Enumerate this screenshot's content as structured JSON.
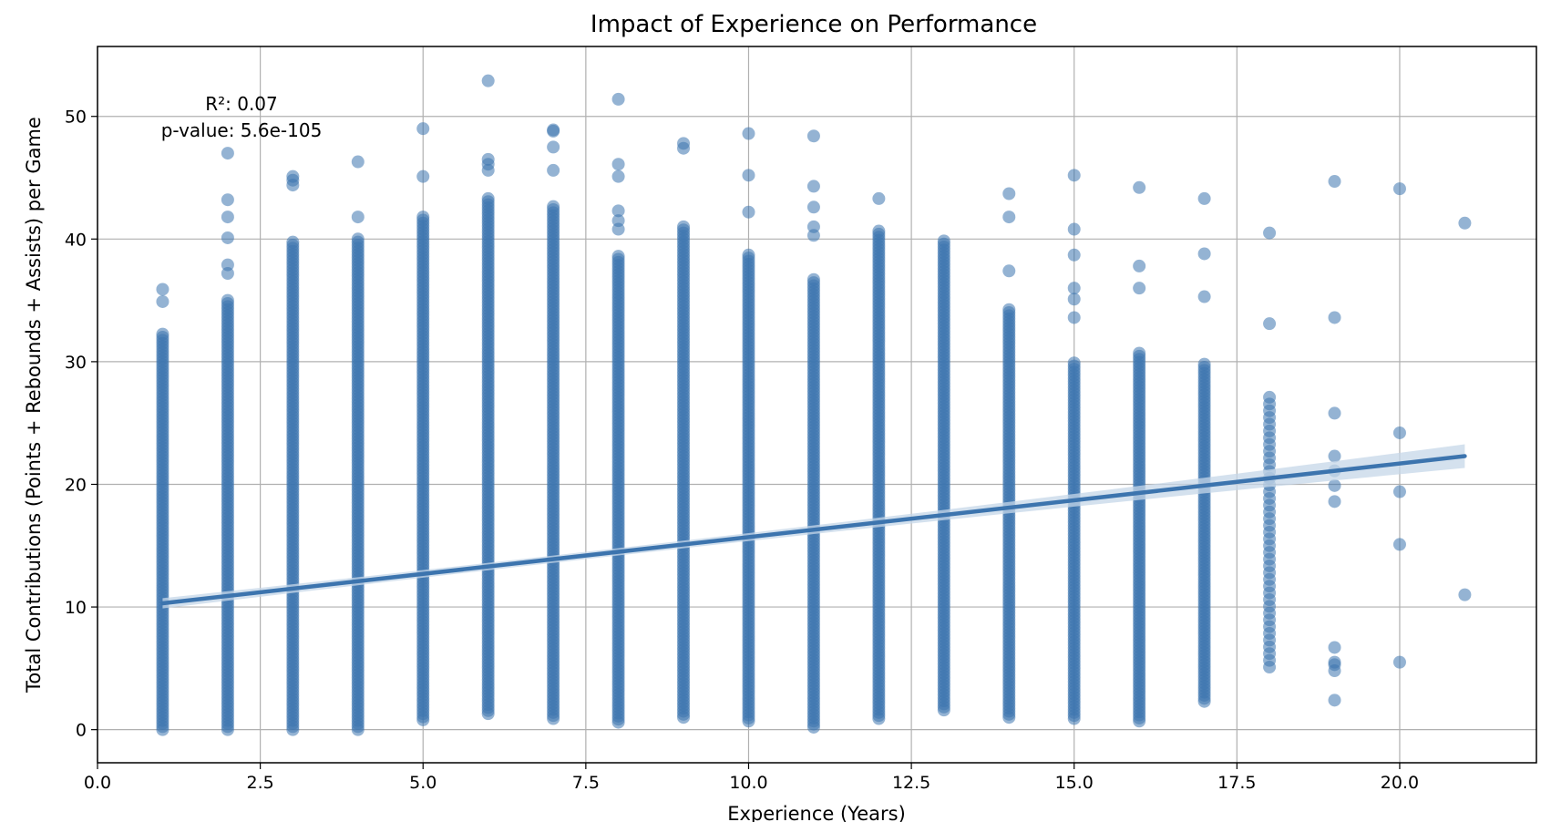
{
  "chart_data": {
    "type": "scatter",
    "title": "Impact of Experience on Performance",
    "xlabel": "Experience (Years)",
    "ylabel": "Total Contributions (Points + Rebounds + Assists) per Game",
    "xlim": [
      0,
      22.1
    ],
    "ylim": [
      -2.7,
      55.7
    ],
    "xticks": [
      0.0,
      2.5,
      5.0,
      7.5,
      10.0,
      12.5,
      15.0,
      17.5,
      20.0
    ],
    "xtick_labels": [
      "0.0",
      "2.5",
      "5.0",
      "7.5",
      "10.0",
      "12.5",
      "15.0",
      "17.5",
      "20.0"
    ],
    "yticks": [
      0,
      10,
      20,
      30,
      40,
      50
    ],
    "ytick_labels": [
      "0",
      "10",
      "20",
      "30",
      "40",
      "50"
    ],
    "grid": true,
    "colors": {
      "points": "#3c74ae",
      "line": "#3c74ae",
      "band": "#c6d7e8"
    },
    "annotations": [
      {
        "text": "R²: 0.07"
      },
      {
        "text": "p-value: 5.6e-105"
      }
    ],
    "regression": {
      "x": [
        1,
        21
      ],
      "y": [
        10.3,
        22.3
      ]
    },
    "columns": [
      {
        "x": 1,
        "min": 0,
        "max": 32.3,
        "outliers": [
          34.9,
          35.9
        ]
      },
      {
        "x": 2,
        "min": 0,
        "max": 35.0,
        "outliers": [
          37.2,
          37.9,
          40.1,
          41.8,
          43.2,
          47.0
        ]
      },
      {
        "x": 3,
        "min": 0,
        "max": 39.9,
        "outliers": [
          44.4,
          44.8,
          45.1
        ]
      },
      {
        "x": 4,
        "min": 0,
        "max": 40.2,
        "outliers": [
          41.8,
          46.3
        ]
      },
      {
        "x": 5,
        "min": 0.8,
        "max": 42.0,
        "outliers": [
          45.1,
          49.0
        ]
      },
      {
        "x": 6,
        "min": 1.3,
        "max": 43.5,
        "outliers": [
          45.6,
          46.1,
          46.5,
          52.9
        ]
      },
      {
        "x": 7,
        "min": 0.9,
        "max": 42.7,
        "outliers": [
          45.6,
          47.5,
          48.8,
          48.9
        ]
      },
      {
        "x": 8,
        "min": 0.6,
        "max": 38.6,
        "outliers": [
          40.8,
          41.5,
          42.3,
          45.1,
          46.1,
          51.4
        ]
      },
      {
        "x": 9,
        "min": 1.0,
        "max": 41.1,
        "outliers": [
          47.4,
          47.8
        ]
      },
      {
        "x": 10,
        "min": 0.7,
        "max": 38.9,
        "outliers": [
          42.2,
          45.2,
          48.6
        ]
      },
      {
        "x": 11,
        "min": 0.2,
        "max": 36.8,
        "outliers": [
          40.3,
          41.0,
          42.6,
          44.3,
          48.4
        ]
      },
      {
        "x": 12,
        "min": 0.9,
        "max": 40.7,
        "outliers": [
          43.3
        ]
      },
      {
        "x": 13,
        "min": 1.6,
        "max": 40.0,
        "outliers": []
      },
      {
        "x": 14,
        "min": 1.0,
        "max": 34.3,
        "outliers": [
          37.4,
          41.8,
          43.7
        ]
      },
      {
        "x": 15,
        "min": 0.9,
        "max": 30.1,
        "outliers": [
          33.6,
          35.1,
          36.0,
          38.7,
          40.8,
          45.2
        ]
      },
      {
        "x": 16,
        "min": 0.7,
        "max": 30.7,
        "outliers": [
          36.0,
          37.8,
          44.2
        ]
      },
      {
        "x": 17,
        "min": 2.3,
        "max": 30.0,
        "outliers": [
          35.3,
          38.8,
          43.3
        ]
      },
      {
        "x": 18,
        "min": 5.1,
        "max": 27.1,
        "outliers": [
          33.1,
          40.5
        ]
      },
      {
        "x": 19,
        "values": [
          2.4,
          4.8,
          5.3,
          5.5,
          6.7,
          18.6,
          19.9,
          21.1,
          22.3,
          25.8,
          33.6,
          44.7
        ]
      },
      {
        "x": 20,
        "values": [
          5.5,
          15.1,
          19.4,
          24.2,
          44.1
        ]
      },
      {
        "x": 21,
        "values": [
          11.0,
          41.3
        ]
      }
    ]
  }
}
